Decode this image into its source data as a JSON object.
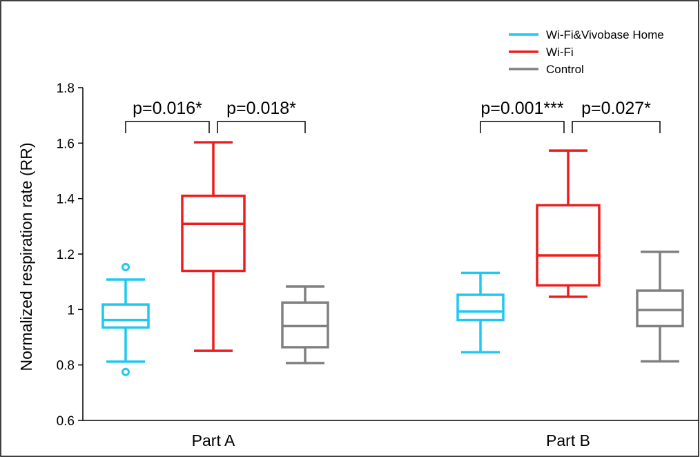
{
  "chart_data": {
    "type": "box",
    "ylabel": "Normalized respiration rate (RR)",
    "ylim": [
      0.6,
      1.8
    ],
    "yticks": [
      0.6,
      0.8,
      1,
      1.2,
      1.4,
      1.6,
      1.8
    ],
    "ytick_labels": [
      "0.6",
      "0.8",
      "1",
      "1.2",
      "1.4",
      "1.6",
      "1.8"
    ],
    "categories": [
      "Part A",
      "Part B"
    ],
    "legend_position": "top-right",
    "series": [
      {
        "name": "Wi-Fi&Vivobase Home",
        "color": "#1ec8f0",
        "boxes": [
          {
            "whisker_low": 0.812,
            "q1": 0.935,
            "median": 0.962,
            "q3": 1.018,
            "whisker_high": 1.108,
            "outliers": [
              0.775,
              1.153
            ]
          },
          {
            "whisker_low": 0.846,
            "q1": 0.962,
            "median": 0.993,
            "q3": 1.053,
            "whisker_high": 1.132,
            "outliers": []
          }
        ]
      },
      {
        "name": "Wi-Fi",
        "color": "#ee1c1c",
        "boxes": [
          {
            "whisker_low": 0.851,
            "q1": 1.139,
            "median": 1.309,
            "q3": 1.41,
            "whisker_high": 1.603,
            "outliers": []
          },
          {
            "whisker_low": 1.046,
            "q1": 1.087,
            "median": 1.195,
            "q3": 1.376,
            "whisker_high": 1.573,
            "outliers": []
          }
        ]
      },
      {
        "name": "Control",
        "color": "#808080",
        "boxes": [
          {
            "whisker_low": 0.807,
            "q1": 0.864,
            "median": 0.94,
            "q3": 1.025,
            "whisker_high": 1.083,
            "outliers": []
          },
          {
            "whisker_low": 0.813,
            "q1": 0.94,
            "median": 0.998,
            "q3": 1.068,
            "whisker_high": 1.208,
            "outliers": []
          }
        ]
      }
    ],
    "annotations": [
      {
        "category": 0,
        "from_series": 0,
        "to_series": 1,
        "text": "p=0.016*"
      },
      {
        "category": 0,
        "from_series": 1,
        "to_series": 2,
        "text": "p=0.018*"
      },
      {
        "category": 1,
        "from_series": 0,
        "to_series": 1,
        "text": "p=0.001***"
      },
      {
        "category": 1,
        "from_series": 1,
        "to_series": 2,
        "text": "p=0.027*"
      }
    ]
  }
}
